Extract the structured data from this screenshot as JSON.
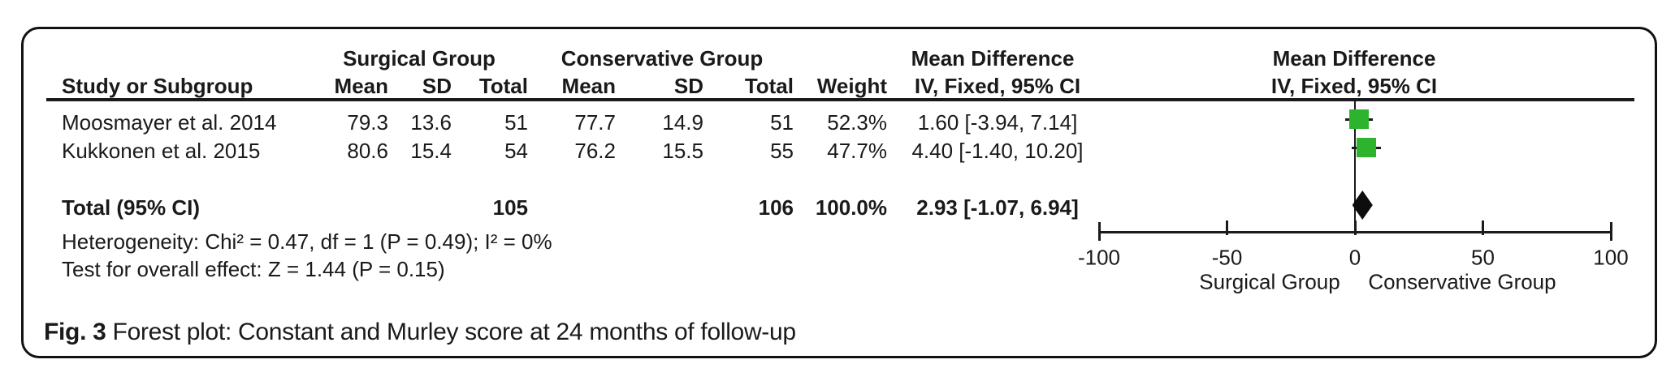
{
  "figure": {
    "caption_label": "Fig. 3",
    "caption_text": "Forest plot: Constant and Murley score at 24 months of follow-up"
  },
  "table": {
    "group_headers": {
      "surgical": "Surgical Group",
      "conservative": "Conservative Group",
      "mean_difference": "Mean Difference",
      "mean_difference_plot": "Mean Difference"
    },
    "col_headers": {
      "study": "Study or Subgroup",
      "surg_mean": "Mean",
      "surg_sd": "SD",
      "surg_total": "Total",
      "cons_mean": "Mean",
      "cons_sd": "SD",
      "cons_total": "Total",
      "weight": "Weight",
      "ci": "IV, Fixed, 95% CI",
      "ci_plot": "IV, Fixed, 95% CI"
    },
    "rows": [
      {
        "study": "Moosmayer et al. 2014",
        "surg_mean": "79.3",
        "surg_sd": "13.6",
        "surg_total": "51",
        "cons_mean": "77.7",
        "cons_sd": "14.9",
        "cons_total": "51",
        "weight": "52.3%",
        "ci": "1.60 [-3.94, 7.14]"
      },
      {
        "study": "Kukkonen et al. 2015",
        "surg_mean": "80.6",
        "surg_sd": "15.4",
        "surg_total": "54",
        "cons_mean": "76.2",
        "cons_sd": "15.5",
        "cons_total": "55",
        "weight": "47.7%",
        "ci": "4.40 [-1.40, 10.20]"
      }
    ],
    "total_row": {
      "label": "Total (95% CI)",
      "surg_total": "105",
      "cons_total": "106",
      "weight": "100.0%",
      "ci": "2.93 [-1.07, 6.94]"
    },
    "heterogeneity": "Heterogeneity: Chi² = 0.47, df = 1 (P = 0.49); I² = 0%",
    "overall_effect": "Test for overall effect: Z = 1.44 (P = 0.15)"
  },
  "chart_data": {
    "type": "forest",
    "effect_measure": "Mean Difference IV, Fixed, 95% CI",
    "studies": [
      {
        "name": "Moosmayer et al. 2014",
        "md": 1.6,
        "ci_low": -3.94,
        "ci_high": 7.14,
        "weight_pct": 52.3
      },
      {
        "name": "Kukkonen et al. 2015",
        "md": 4.4,
        "ci_low": -1.4,
        "ci_high": 10.2,
        "weight_pct": 47.7
      }
    ],
    "total": {
      "label": "Total (95% CI)",
      "md": 2.93,
      "ci_low": -1.07,
      "ci_high": 6.94,
      "weight_pct": 100.0
    },
    "axis": {
      "min": -100,
      "max": 100,
      "ticks": [
        "-100",
        "-50",
        "0",
        "50",
        "100"
      ],
      "tick_values": [
        -100,
        -50,
        0,
        50,
        100
      ],
      "left_label": "Surgical Group",
      "right_label": "Conservative Group"
    },
    "marker_color": "#2db32d",
    "diamond_color": "#0d0d0d",
    "grid": false,
    "heterogeneity": "Chi² = 0.47, df = 1 (P = 0.49); I² = 0%",
    "overall_effect": "Z = 1.44 (P = 0.15)"
  }
}
